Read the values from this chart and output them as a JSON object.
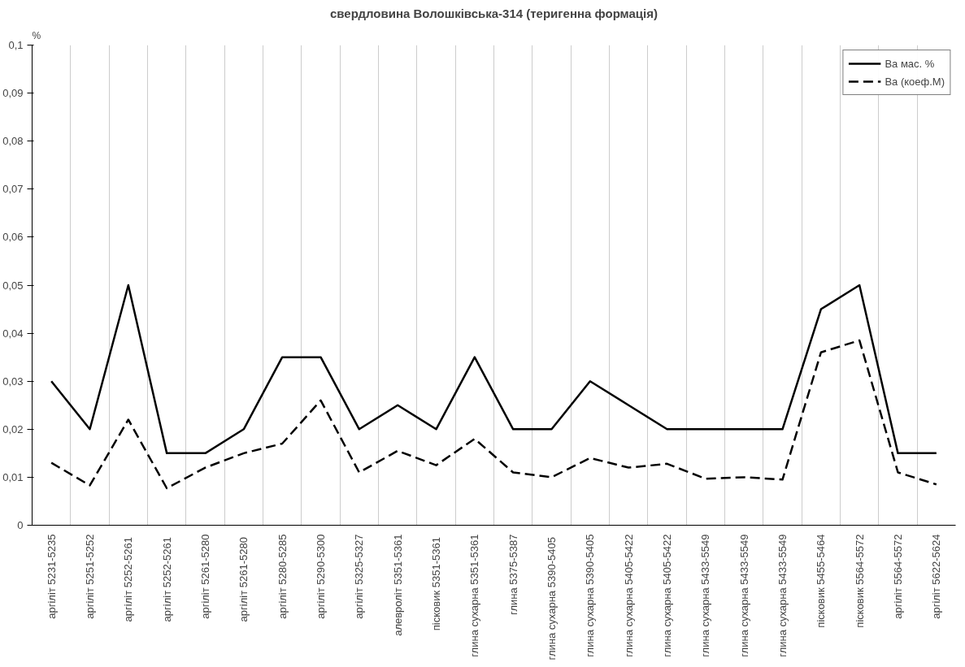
{
  "chart_data": {
    "type": "line",
    "title": "свердловина Волошківська-314 (теригенна формація)",
    "ylabel": "%",
    "categories": [
      "аргіліт 5231-5235",
      "аргіліт 5251-5252",
      "аргіліт  5252-5261",
      "аргіліт  5252-5261",
      "аргіліт 5261-5280",
      "аргіліт  5261-5280",
      "аргіліт 5280-5285",
      "аргіліт 5290-5300",
      "аргіліт 5325-5327",
      "алевроліт 5351-5361",
      "пісковик  5351-5361",
      "глина сухарна 5351-5361",
      "глина 5375-5387",
      "глина сухарна  5390-5405",
      "глина сухарна 5390-5405",
      "глина сухарна 5405-5422",
      "глина сухарна 5405-5422",
      "глина сухарна 5433-5549",
      "глина сухарна 5433-5549",
      "глина сухарна 5433-5549",
      "пісковик 5455-5464",
      "пісковик 5564-5572",
      "аргіліт 5564-5572",
      "аргіліт 5622-5624"
    ],
    "series": [
      {
        "name": "Ва мас. %",
        "color": "#000000",
        "line_style": "solid",
        "values": [
          0.03,
          0.02,
          0.05,
          0.015,
          0.015,
          0.02,
          0.035,
          0.035,
          0.02,
          0.025,
          0.02,
          0.035,
          0.02,
          0.02,
          0.03,
          0.025,
          0.02,
          0.02,
          0.02,
          0.02,
          0.045,
          0.05,
          0.015,
          0.015
        ]
      },
      {
        "name": "Ва (коеф.М)",
        "color": "#000000",
        "line_style": "dashed",
        "values": [
          0.013,
          0.0083,
          0.022,
          0.0077,
          0.012,
          0.015,
          0.017,
          0.026,
          0.011,
          0.0155,
          0.0125,
          0.018,
          0.011,
          0.01,
          0.014,
          0.012,
          0.0128,
          0.0097,
          0.01,
          0.0095,
          0.036,
          0.0385,
          0.011,
          0.0085
        ]
      }
    ],
    "ylim": [
      0,
      0.1
    ],
    "yticks": [
      0,
      {
        "value": 0.01,
        "label": "0,01"
      },
      {
        "value": 0.02,
        "label": "0,02"
      },
      {
        "value": 0.03,
        "label": "0,03"
      },
      {
        "value": 0.04,
        "label": "0,04"
      },
      {
        "value": 0.05,
        "label": "0,05"
      },
      {
        "value": 0.06,
        "label": "0,06"
      },
      {
        "value": 0.07,
        "label": "0,07"
      },
      {
        "value": 0.08,
        "label": "0,08"
      },
      {
        "value": 0.09,
        "label": "0,09"
      },
      {
        "value": 0.1,
        "label": "0,1"
      }
    ],
    "grid": "x",
    "legend": "top right",
    "marker": "none"
  }
}
